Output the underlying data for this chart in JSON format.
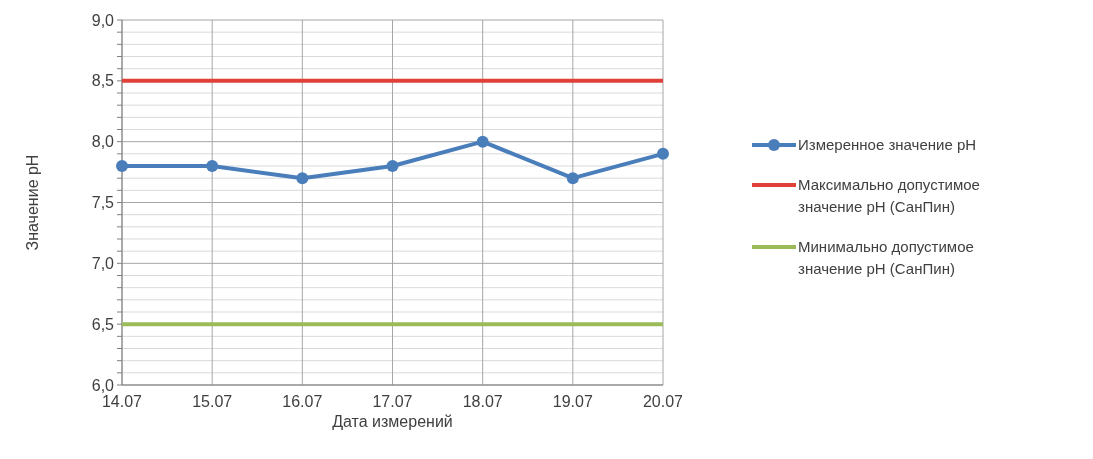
{
  "chart_data": {
    "type": "line",
    "xlabel": "Дата измерений",
    "ylabel": "Значение pH",
    "categories": [
      "14.07",
      "15.07",
      "16.07",
      "17.07",
      "18.07",
      "19.07",
      "20.07"
    ],
    "series": [
      {
        "name": "Измеренное значение pH",
        "color": "#4a7ebb",
        "values": [
          7.8,
          7.8,
          7.7,
          7.8,
          8.0,
          7.7,
          7.9
        ],
        "marker": "circle"
      },
      {
        "name": "Максимально допустимое значение pH (СанПин)",
        "color": "#e0403a",
        "values": [
          8.5,
          8.5,
          8.5,
          8.5,
          8.5,
          8.5,
          8.5
        ],
        "marker": "none"
      },
      {
        "name": "Минимально допустимое значение pH (СанПин)",
        "color": "#9bbb59",
        "values": [
          6.5,
          6.5,
          6.5,
          6.5,
          6.5,
          6.5,
          6.5
        ],
        "marker": "none"
      }
    ],
    "ylim": [
      6,
      9
    ],
    "yticks": [
      {
        "value": 6,
        "label": "6,0"
      },
      {
        "value": 6.1,
        "label": null
      },
      {
        "value": 6.2,
        "label": null
      },
      {
        "value": 6.3,
        "label": null
      },
      {
        "value": 6.4,
        "label": null
      },
      {
        "value": 6.5,
        "label": "6,5"
      },
      {
        "value": 6.6,
        "label": null
      },
      {
        "value": 6.7,
        "label": null
      },
      {
        "value": 6.8,
        "label": null
      },
      {
        "value": 6.9,
        "label": null
      },
      {
        "value": 7,
        "label": "7,0"
      },
      {
        "value": 7.1,
        "label": null
      },
      {
        "value": 7.2,
        "label": null
      },
      {
        "value": 7.3,
        "label": null
      },
      {
        "value": 7.4,
        "label": null
      },
      {
        "value": 7.5,
        "label": "7,5"
      },
      {
        "value": 7.6,
        "label": null
      },
      {
        "value": 7.7,
        "label": null
      },
      {
        "value": 7.8,
        "label": null
      },
      {
        "value": 7.9,
        "label": null
      },
      {
        "value": 8,
        "label": "8,0"
      },
      {
        "value": 8.1,
        "label": null
      },
      {
        "value": 8.2,
        "label": null
      },
      {
        "value": 8.3,
        "label": null
      },
      {
        "value": 8.4,
        "label": null
      },
      {
        "value": 8.5,
        "label": "8,5"
      },
      {
        "value": 8.6,
        "label": null
      },
      {
        "value": 8.7,
        "label": null
      },
      {
        "value": 8.8,
        "label": null
      },
      {
        "value": 8.9,
        "label": null
      },
      {
        "value": 9,
        "label": "9,0"
      }
    ],
    "grid": true,
    "legend": "right",
    "line_style": "solid"
  }
}
